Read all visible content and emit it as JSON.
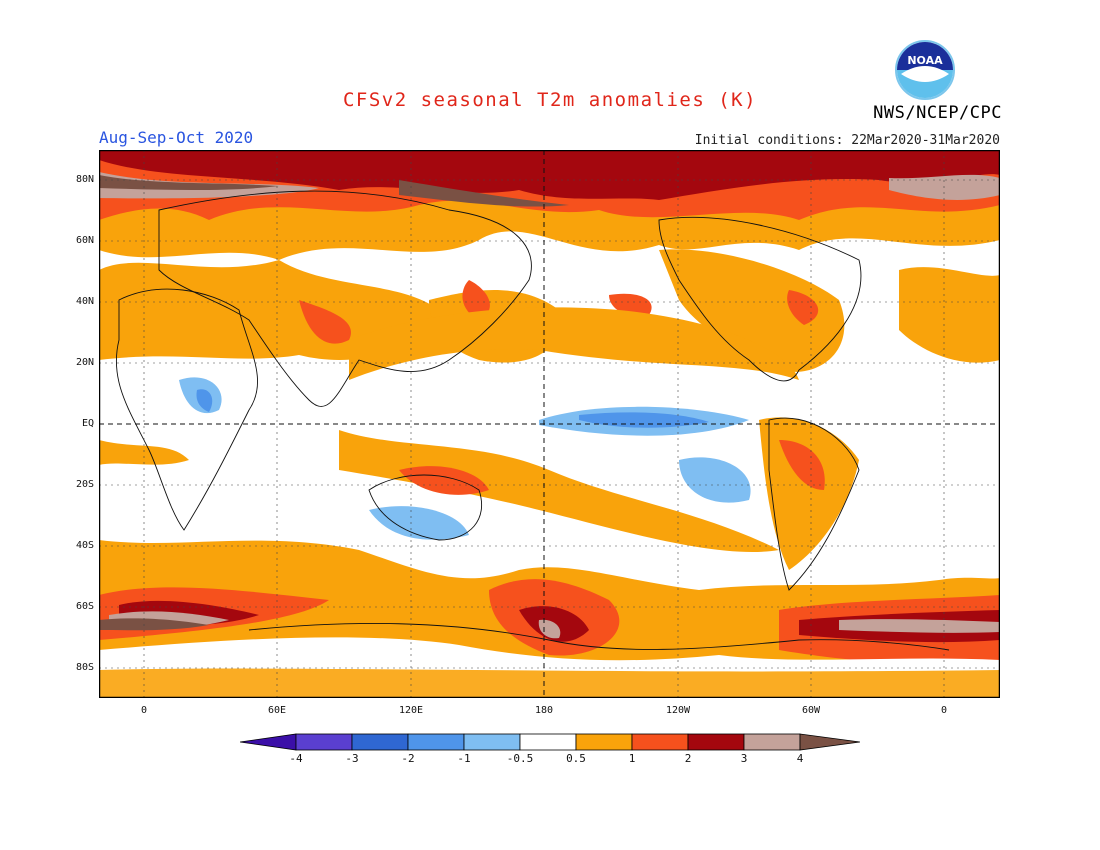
{
  "header": {
    "title": "CFSv2 seasonal T2m anomalies (K)",
    "season": "Aug-Sep-Oct 2020",
    "initial_conditions": "Initial conditions: 22Mar2020-31Mar2020",
    "agency": "NWS/NCEP/CPC",
    "logo_text": "NOAA"
  },
  "map": {
    "lat_labels": [
      "80N",
      "60N",
      "40N",
      "20N",
      "EQ",
      "20S",
      "40S",
      "60S",
      "80S"
    ],
    "lon_labels": [
      "0",
      "60E",
      "120E",
      "180",
      "120W",
      "60W",
      "0"
    ]
  },
  "colorbar": {
    "labels": [
      "-4",
      "-3",
      "-2",
      "-1",
      "-0.5",
      "0.5",
      "1",
      "2",
      "3",
      "4"
    ],
    "colors": [
      "#3b0fa8",
      "#5a3fd0",
      "#2f67d2",
      "#4f95ea",
      "#7fbef2",
      "#ffffff",
      "#f9a30b",
      "#f6511d",
      "#a4070e",
      "#c4a29a",
      "#7a5144"
    ]
  }
}
